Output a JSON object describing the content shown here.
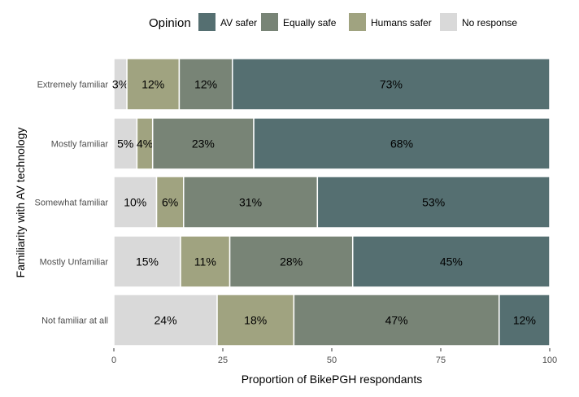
{
  "chart_data": {
    "type": "bar",
    "orientation": "horizontal",
    "stacked": true,
    "title": "",
    "xlabel": "Proportion of BikePGH respondants",
    "ylabel": "Familiarity with AV technology",
    "xlim": [
      0,
      100
    ],
    "x_ticks": [
      "0",
      "25",
      "50",
      "75",
      "100"
    ],
    "legend_title": "Opinion",
    "legend_position": "top",
    "categories": [
      "Extremely familiar",
      "Mostly familiar",
      "Somewhat familiar",
      "Mostly Unfamiliar",
      "Not familiar at all"
    ],
    "series": [
      {
        "name": "No response",
        "color": "#d9d9d9",
        "values": [
          3,
          5.3,
          9.8,
          15.3,
          23.7
        ],
        "labels": [
          "3%",
          "5%",
          "10%",
          "15%",
          "24%"
        ]
      },
      {
        "name": "Humans safer",
        "color": "#a0a380",
        "values": [
          12,
          3.6,
          6.2,
          11.3,
          17.6
        ],
        "labels": [
          "12%",
          "4%",
          "6%",
          "11%",
          "18%"
        ]
      },
      {
        "name": "Equally safe",
        "color": "#788476",
        "values": [
          12.2,
          23.2,
          30.7,
          28.2,
          47.1
        ],
        "labels": [
          "12%",
          "23%",
          "31%",
          "28%",
          "47%"
        ]
      },
      {
        "name": "AV safer",
        "color": "#556f71",
        "values": [
          72.8,
          67.9,
          53.3,
          45.2,
          11.6
        ],
        "labels": [
          "73%",
          "68%",
          "53%",
          "45%",
          "12%"
        ]
      }
    ],
    "legend_order": [
      "AV safer",
      "Equally safe",
      "Humans safer",
      "No response"
    ]
  }
}
